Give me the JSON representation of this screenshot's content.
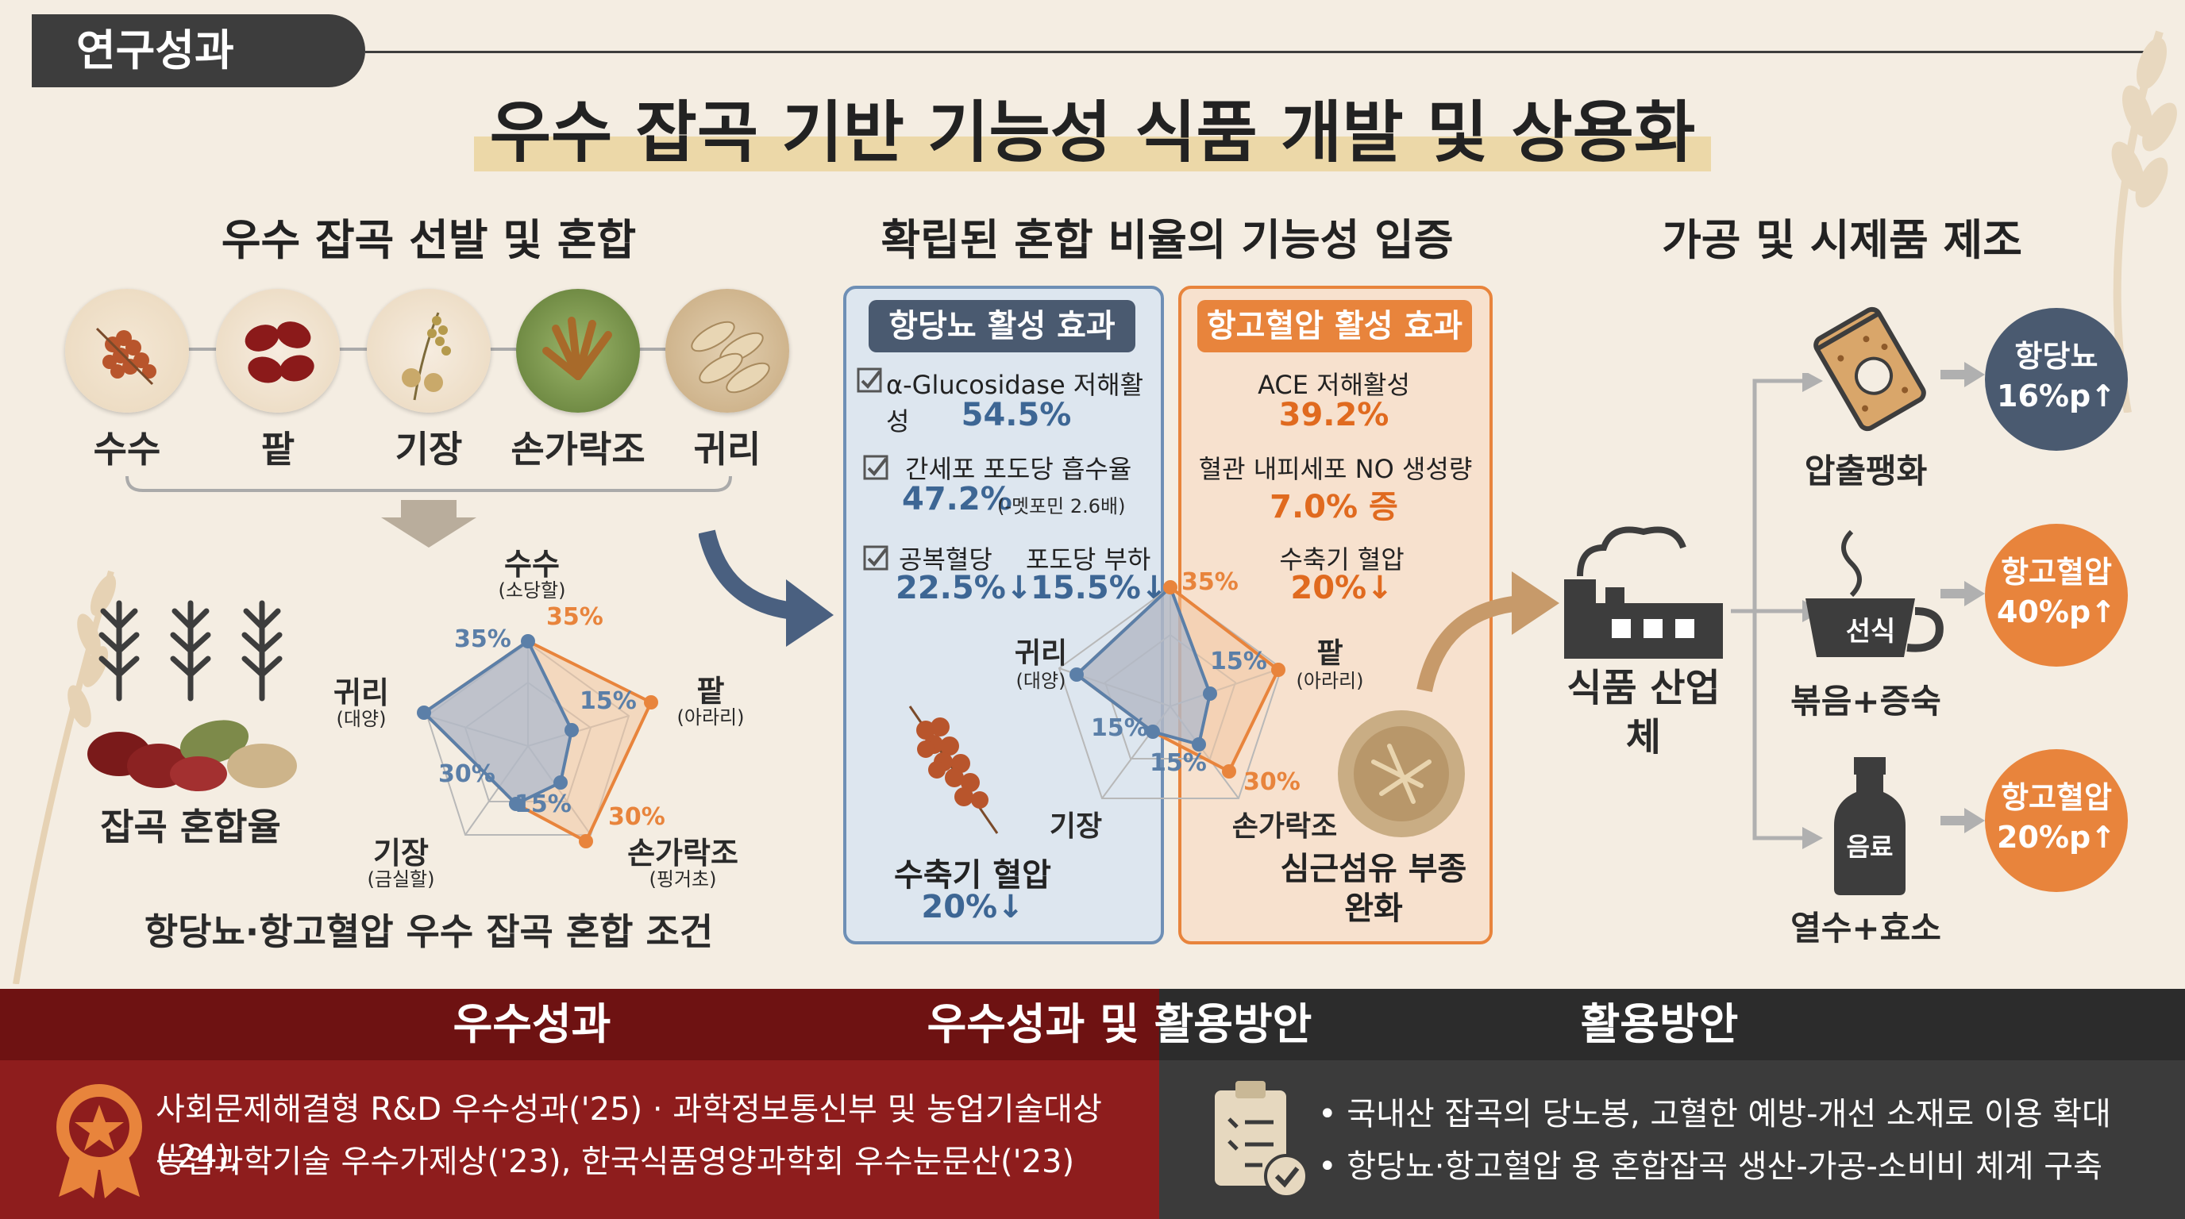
{
  "tag": "연구성과",
  "title": "우수 잡곡 기반 기능성 식품 개발 및 상용화",
  "section1": {
    "heading": "우수 잡곡 선발 및 혼합",
    "grains": [
      "수수",
      "팥",
      "기장",
      "손가락조",
      "귀리"
    ],
    "mix_label": "잡곡 혼합율",
    "radar": {
      "axes": [
        {
          "name": "수수",
          "sub": "(소당할)"
        },
        {
          "name": "팥",
          "sub": "(아라리)"
        },
        {
          "name": "손가락조",
          "sub": "(핑거초)"
        },
        {
          "name": "기장",
          "sub": "(금실할)"
        },
        {
          "name": "귀리",
          "sub": "(대양)"
        }
      ],
      "labels_orange": [
        "35%",
        "15%",
        "30%"
      ],
      "labels_blue": [
        "35%",
        "30%",
        "15%"
      ]
    },
    "caption": "항당뇨·항고혈압 우수 잡곡 혼합 조건"
  },
  "section2": {
    "heading": "확립된 혼합 비율의 기능성 입증",
    "blue_panel": {
      "header": "항당뇨 활성 효과",
      "item1_label": "α-Glucosidase 저해활성",
      "item1_value": "54.5%",
      "item2_label": "간세포 포도당 흡수율",
      "item2_value": "47.2%",
      "item2_note": "(-멧포민 2.6배)",
      "item3_label_a": "공복혈당",
      "item3_label_b": "포도당 부하",
      "item3_value_a": "22.5%↓",
      "item3_value_b": "15.5%↓",
      "bottom_label": "수축기 혈압",
      "bottom_value": "20%↓"
    },
    "orange_panel": {
      "header": "항고혈압 활성 효과",
      "item1_label": "ACE 저해활성",
      "item1_value": "39.2%",
      "item2_label": "혈관 내피세포 NO 생성량",
      "item2_value": "7.0% 증",
      "item3_label": "수축기 혈압",
      "item3_value": "20%↓",
      "bottom_label": "심근섬유 부종 완화"
    },
    "radar": {
      "axes": [
        {
          "name": "수수",
          "sub": ""
        },
        {
          "name": "팥",
          "sub": "(아라리)"
        },
        {
          "name": "손가락조",
          "sub": ""
        },
        {
          "name": "기장",
          "sub": ""
        },
        {
          "name": "귀리",
          "sub": "(대양)"
        }
      ],
      "labels": [
        "35%",
        "15%",
        "30%",
        "15%",
        "15%"
      ]
    }
  },
  "section3": {
    "heading": "가공 및 시제품 제조",
    "industry_label": "식품 산업체",
    "products": [
      {
        "label": "압출팽화",
        "badge": "항당뇨 16%p↑",
        "badge_color": "#4a5a70"
      },
      {
        "label": "볶음+증숙",
        "icon_text": "선식",
        "badge": "항고혈압 40%p↑",
        "badge_color": "#e8843c"
      },
      {
        "label": "열수+효소",
        "icon_text": "음료",
        "badge": "항고혈압 20%p↑",
        "badge_color": "#e8843c"
      }
    ]
  },
  "bottom": {
    "center_title": "우수성과 및 활용방안",
    "left_title": "우수성과",
    "right_title": "활용방안",
    "left_line1": "사회문제해결형 R&D 우수성과('25) · 과학정보통신부 및 농업기술대상('24),",
    "left_line2": "농업과학기술 우수가제상('23), 한국식품영양과학회 우수눈문산('23)",
    "right_line1": "• 국내산 잡곡의 당노봉, 고혈한 예방-개선 소재로 이용 확대",
    "right_line2": "• 항당뇨·항고혈압 용 혼합잡곡 생산-가공-소비비 체계 구축"
  },
  "colors": {
    "blue": "#5b7fa8",
    "orange": "#e8843c",
    "dark_red": "#8e1d1d",
    "dark": "#3b3b3b"
  }
}
